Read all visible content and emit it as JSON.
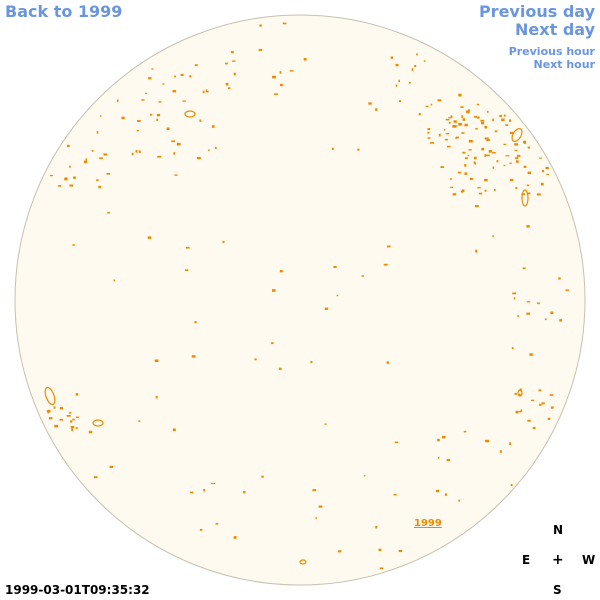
{
  "nav": {
    "back": "Back to 1999",
    "previous_day": "Previous day",
    "next_day": "Next day",
    "previous_hour": "Previous hour",
    "next_hour": "Next hour"
  },
  "sky": {
    "marker_label": "1999",
    "disc_color": "#fefaf0",
    "contour_color": "#ee8a00"
  },
  "compass": {
    "n": "N",
    "e": "E",
    "center": "+",
    "w": "W",
    "s": "S"
  },
  "timestamp": "1999-03-01T09:35:32"
}
